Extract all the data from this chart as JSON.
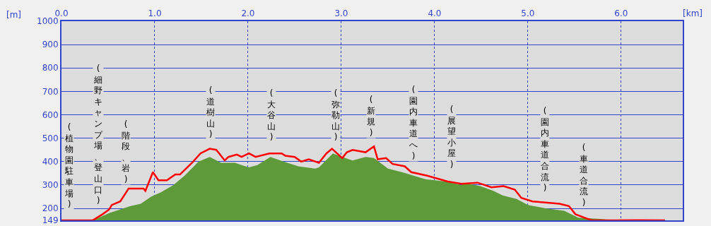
{
  "chart_data": {
    "type": "line",
    "xlabel": "[km]",
    "ylabel": "[m]",
    "xlim": [
      0,
      6.66
    ],
    "xticks": [
      {
        "value": 0,
        "label": "0.0"
      },
      {
        "value": 1,
        "label": "1.0"
      },
      {
        "value": 2,
        "label": "2.0"
      },
      {
        "value": 3,
        "label": "3.0"
      },
      {
        "value": 4,
        "label": "4.0"
      },
      {
        "value": 5,
        "label": "5.0"
      },
      {
        "value": 6,
        "label": "6.0"
      }
    ],
    "ylim": [
      149,
      1000
    ],
    "yticks": [
      149,
      200,
      300,
      400,
      500,
      600,
      700,
      800,
      900,
      1000
    ],
    "grid": true,
    "series": [
      {
        "type": "area",
        "color": "#5f9a3a",
        "x": [
          0.34,
          0.51,
          0.74,
          0.85,
          0.96,
          1.07,
          1.2,
          1.32,
          1.47,
          1.59,
          1.71,
          1.86,
          1.93,
          2.01,
          2.1,
          2.24,
          2.38,
          2.54,
          2.72,
          2.76,
          2.91,
          3.01,
          3.12,
          3.26,
          3.35,
          3.5,
          3.65,
          3.9,
          4.12,
          4.29,
          4.31,
          4.49,
          4.63,
          4.73,
          4.88,
          5.0,
          5.19,
          5.39,
          5.54,
          5.78,
          5.93
        ],
        "values": [
          149,
          180,
          210,
          220,
          250,
          270,
          300,
          340,
          400,
          420,
          395,
          395,
          385,
          375,
          385,
          420,
          400,
          380,
          370,
          375,
          435,
          420,
          405,
          420,
          415,
          370,
          355,
          325,
          315,
          300,
          310,
          295,
          275,
          255,
          240,
          215,
          200,
          190,
          160,
          155,
          149
        ]
      },
      {
        "color": "#ff0000",
        "x": [
          0.0,
          0.24,
          0.34,
          0.44,
          0.51,
          0.54,
          0.63,
          0.72,
          0.78,
          0.88,
          0.9,
          0.98,
          1.04,
          1.13,
          1.22,
          1.27,
          1.4,
          1.49,
          1.59,
          1.66,
          1.75,
          1.79,
          1.88,
          1.93,
          2.01,
          2.08,
          2.23,
          2.36,
          2.4,
          2.5,
          2.57,
          2.65,
          2.76,
          2.84,
          2.9,
          3.01,
          3.06,
          3.12,
          3.26,
          3.35,
          3.39,
          3.48,
          3.55,
          3.68,
          3.75,
          3.92,
          4.14,
          4.29,
          4.46,
          4.61,
          4.74,
          4.86,
          4.93,
          5.05,
          5.19,
          5.34,
          5.44,
          5.51,
          5.61,
          5.68,
          5.93,
          6.18,
          6.47
        ],
        "values": [
          149,
          149,
          150,
          175,
          195,
          215,
          230,
          285,
          285,
          285,
          275,
          355,
          320,
          320,
          345,
          345,
          395,
          435,
          455,
          450,
          405,
          420,
          430,
          420,
          435,
          420,
          435,
          435,
          425,
          420,
          400,
          410,
          395,
          435,
          455,
          415,
          440,
          450,
          440,
          465,
          410,
          415,
          390,
          380,
          355,
          340,
          315,
          305,
          310,
          290,
          295,
          280,
          245,
          230,
          225,
          220,
          210,
          175,
          160,
          150,
          149,
          150,
          149
        ]
      }
    ],
    "annotations": [
      "(植物園駐車場)",
      "(細野キャンプ場、登山口)",
      "(階段、岩)",
      "(道樹山)",
      "(大谷山)",
      "(弥勒山)",
      "(新規)",
      "(園内車道へ)",
      "(展望小屋)",
      "(園内車道合流)",
      "(車道合流)"
    ]
  }
}
